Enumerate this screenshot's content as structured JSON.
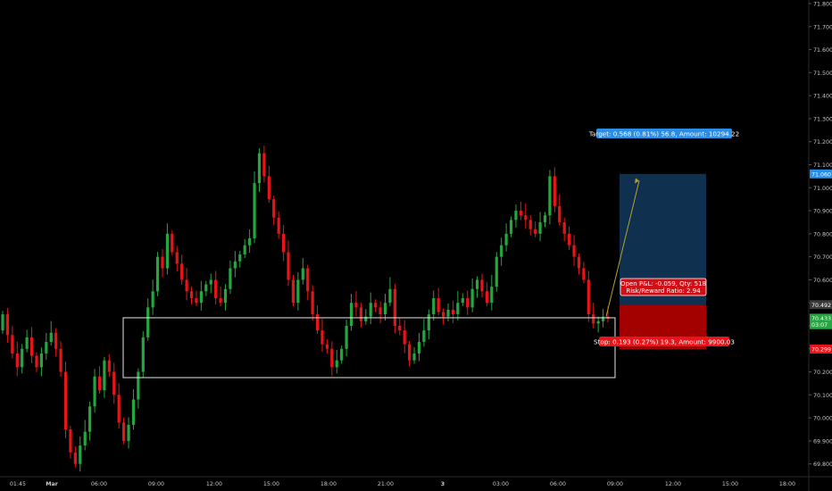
{
  "colors": {
    "background": "#000000",
    "bull": "#26a641",
    "bear": "#e8141a",
    "axis_text": "#c9c9c9",
    "target_zone": "#10304f",
    "stop_zone": "#a30000",
    "target_label_bg": "#2b8ee6",
    "stop_label_bg": "#e8141a",
    "current_price_bg": "#26a641",
    "box_stroke": "#e6e6e6"
  },
  "chart_data": {
    "type": "candlestick",
    "title": "",
    "ylim": [
      69.76,
      71.8
    ],
    "x_ticks": [
      "01:45",
      "Mar",
      "06:00",
      "09:00",
      "12:00",
      "15:00",
      "18:00",
      "21:00",
      "3",
      "03:00",
      "06:00",
      "09:00",
      "12:00",
      "15:00",
      "18:00"
    ],
    "y_ticks": [
      "71.800",
      "71.700",
      "71.600",
      "71.500",
      "71.400",
      "71.300",
      "71.200",
      "71.100",
      "71.000",
      "70.900",
      "70.800",
      "70.700",
      "70.600",
      "70.500",
      "70.400",
      "70.300",
      "70.200",
      "70.100",
      "70.000",
      "69.900",
      "69.800"
    ],
    "price_markers": [
      {
        "label": "71.060",
        "value": 71.06,
        "kind": "target"
      },
      {
        "label": "70.492",
        "value": 70.492,
        "kind": "entry"
      },
      {
        "label": "70.433",
        "value": 70.433,
        "kind": "current"
      },
      {
        "label": "03:07",
        "value": 70.405,
        "kind": "countdown"
      },
      {
        "label": "70.299",
        "value": 70.299,
        "kind": "stop"
      }
    ],
    "candles_close": [
      70.45,
      70.36,
      70.28,
      70.22,
      70.3,
      70.35,
      70.27,
      70.22,
      70.28,
      70.33,
      70.37,
      70.3,
      70.2,
      69.95,
      69.85,
      69.8,
      69.88,
      69.94,
      70.05,
      70.18,
      70.12,
      70.25,
      70.2,
      70.1,
      69.98,
      69.9,
      69.97,
      70.08,
      70.2,
      70.35,
      70.48,
      70.55,
      70.7,
      70.65,
      70.8,
      70.72,
      70.67,
      70.6,
      70.55,
      70.52,
      70.5,
      70.55,
      70.58,
      70.6,
      70.52,
      70.5,
      70.56,
      70.65,
      70.68,
      70.71,
      70.75,
      70.78,
      71.02,
      71.15,
      71.05,
      70.95,
      70.87,
      70.8,
      70.72,
      70.6,
      70.5,
      70.6,
      70.65,
      70.55,
      70.45,
      70.38,
      70.32,
      70.3,
      70.22,
      70.25,
      70.3,
      70.4,
      70.5,
      70.48,
      70.42,
      70.44,
      70.5,
      70.48,
      70.45,
      70.5,
      70.56,
      70.4,
      70.38,
      70.32,
      70.25,
      70.28,
      70.33,
      70.38,
      70.45,
      70.52,
      70.46,
      70.44,
      70.47,
      70.45,
      70.5,
      70.52,
      70.48,
      70.56,
      70.6,
      70.55,
      70.5,
      70.57,
      70.7,
      70.75,
      70.8,
      70.86,
      70.9,
      70.88,
      70.86,
      70.82,
      70.8,
      70.85,
      70.88,
      71.05,
      70.92,
      70.85,
      70.8,
      70.75,
      70.7,
      70.65,
      70.6,
      70.45,
      70.41,
      70.42,
      70.44,
      70.43
    ]
  },
  "annotations": {
    "target_label": "Target: 0.568 (0.81%) 56.8, Amount: 10294.22",
    "open_pnl_label": "Open P&L: -0.059, Qty: 518",
    "rr_label": "Risk/Reward Ratio: 2.94",
    "stop_label": "Stop: 0.193 (0.27%) 19.3, Amount: 9900.03"
  }
}
